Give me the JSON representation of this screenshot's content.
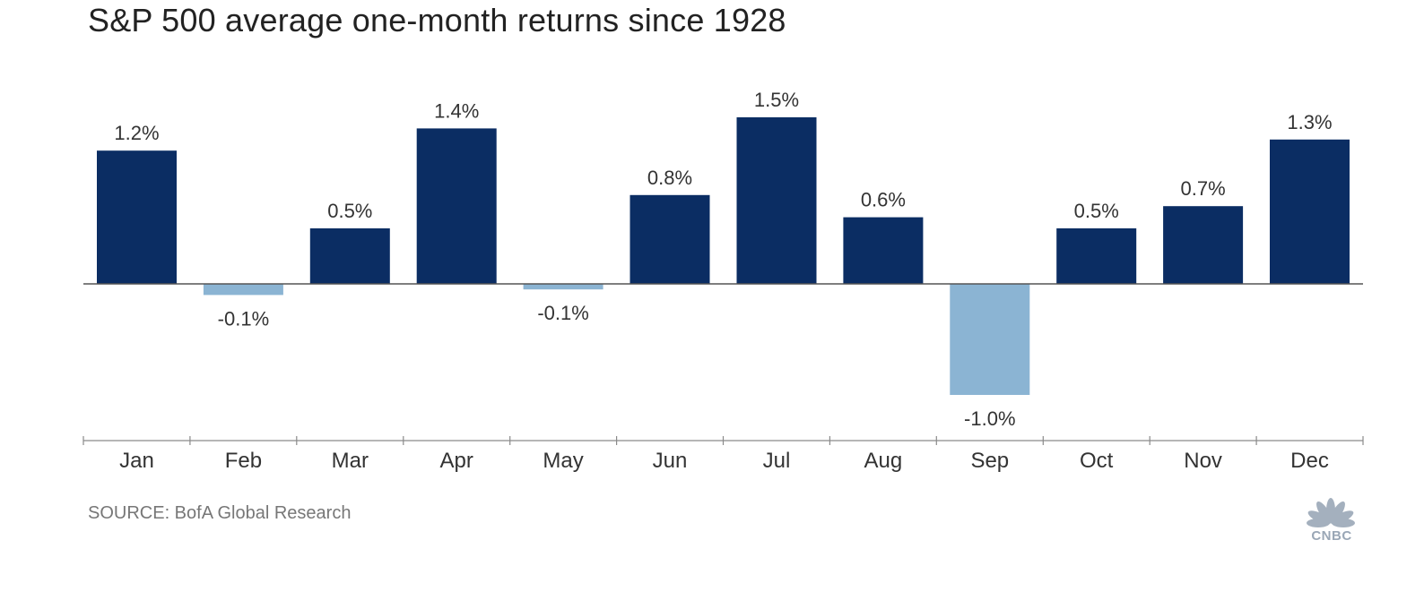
{
  "title": "S&P 500 average one-month returns since 1928",
  "source": "SOURCE: BofA Global Research",
  "logo_text": "CNBC",
  "colors": {
    "positive": "#0b2d63",
    "negative": "#8bb4d3",
    "axis": "#8a8a8a",
    "text": "#333333"
  },
  "chart_data": {
    "type": "bar",
    "categories": [
      "Jan",
      "Feb",
      "Mar",
      "Apr",
      "May",
      "Jun",
      "Jul",
      "Aug",
      "Sep",
      "Oct",
      "Nov",
      "Dec"
    ],
    "values": [
      1.2,
      -0.1,
      0.5,
      1.4,
      -0.05,
      0.8,
      1.5,
      0.6,
      -1.0,
      0.5,
      0.7,
      1.3
    ],
    "labels": [
      "1.2%",
      "-0.1%",
      "0.5%",
      "1.4%",
      "-0.1%",
      "0.8%",
      "1.5%",
      "0.6%",
      "-1.0%",
      "0.5%",
      "0.7%",
      "1.3%"
    ],
    "title": "S&P 500 average one-month returns since 1928",
    "xlabel": "",
    "ylabel": "",
    "ylim": [
      -1.35,
      1.5
    ],
    "grid": false,
    "legend": "none"
  }
}
